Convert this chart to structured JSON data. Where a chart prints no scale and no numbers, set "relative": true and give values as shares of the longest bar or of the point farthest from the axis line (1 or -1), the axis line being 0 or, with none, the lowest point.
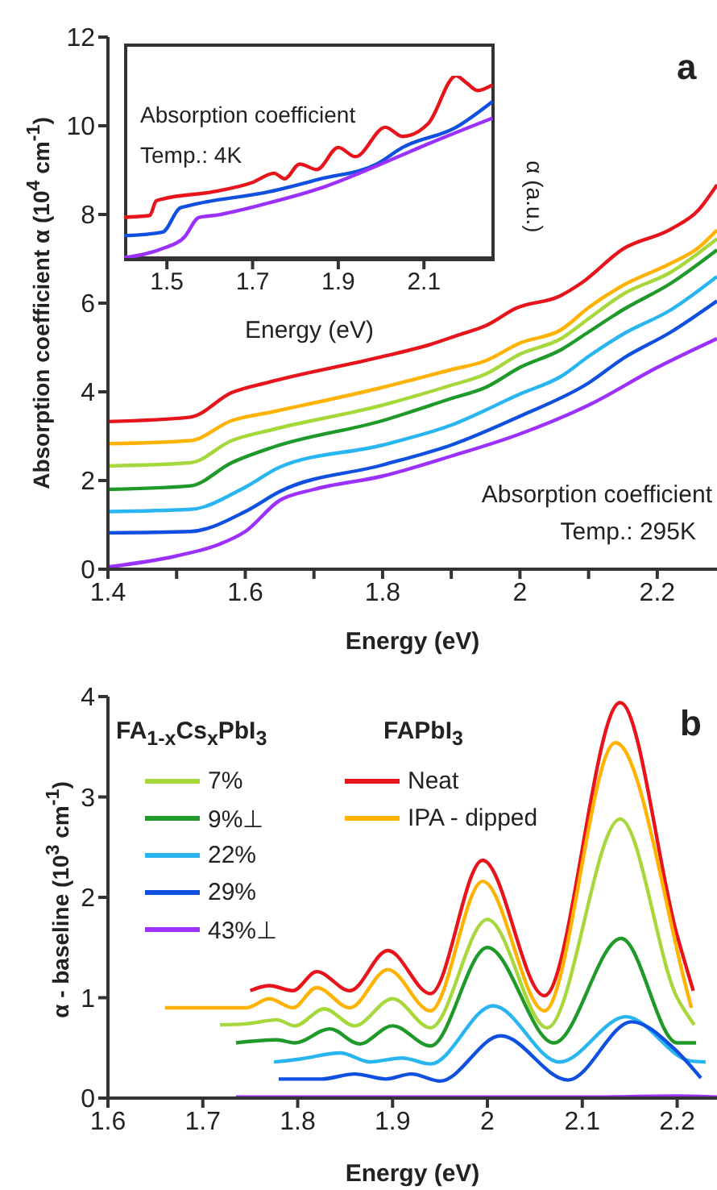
{
  "chart_data": [
    {
      "type": "line",
      "xlabel": "Energy (eV)",
      "ylabel": "Absorption coefficient α (10$^{4}$ cm$^{-1}$)",
      "xlim": [
        1.4,
        2.287
      ],
      "xticks": [
        1.4,
        {
          "value": 1.5,
          "label": null
        },
        1.6,
        {
          "value": 1.7,
          "label": null
        },
        1.8,
        {
          "value": 1.9,
          "label": null
        },
        2,
        {
          "value": 2.1,
          "label": null
        },
        2.2
      ],
      "ylim": [
        0,
        12
      ],
      "yticks": [
        0,
        2,
        4,
        6,
        8,
        10,
        12
      ],
      "annotations": [
        "Absorption coefficient",
        "Temp.: 295K",
        "a"
      ],
      "series": [
        {
          "color": "#e8141c",
          "x": [
            1.4,
            1.52,
            1.58,
            1.635,
            1.79,
            1.87,
            1.91,
            1.95,
            1.995,
            2.058,
            2.09,
            2.15,
            2.22,
            2.26,
            2.287
          ],
          "values": [
            3.33,
            3.43,
            3.98,
            4.22,
            4.76,
            5.07,
            5.28,
            5.49,
            5.89,
            6.16,
            6.46,
            7.22,
            7.67,
            8.1,
            8.67
          ]
        },
        {
          "color": "#ffb300",
          "x": [
            1.4,
            1.52,
            1.58,
            1.64,
            1.8,
            1.9,
            1.95,
            2.0,
            2.06,
            2.1,
            2.15,
            2.22,
            2.26,
            2.287
          ],
          "values": [
            2.83,
            2.9,
            3.35,
            3.55,
            4.1,
            4.5,
            4.7,
            5.1,
            5.4,
            5.9,
            6.4,
            6.9,
            7.25,
            7.65
          ]
        },
        {
          "color": "#a6d83c",
          "x": [
            1.4,
            1.52,
            1.58,
            1.64,
            1.8,
            1.9,
            1.95,
            2.0,
            2.06,
            2.1,
            2.15,
            2.22,
            2.287
          ],
          "values": [
            2.33,
            2.4,
            2.9,
            3.15,
            3.7,
            4.15,
            4.4,
            4.85,
            5.2,
            5.65,
            6.2,
            6.7,
            7.45
          ]
        },
        {
          "color": "#1f9a2a",
          "x": [
            1.4,
            1.52,
            1.58,
            1.64,
            1.8,
            1.9,
            1.95,
            2.0,
            2.06,
            2.1,
            2.15,
            2.22,
            2.287
          ],
          "values": [
            1.8,
            1.88,
            2.4,
            2.75,
            3.35,
            3.85,
            4.1,
            4.55,
            4.95,
            5.35,
            5.85,
            6.45,
            7.2
          ]
        },
        {
          "color": "#29b6f0",
          "x": [
            1.4,
            1.52,
            1.6,
            1.65,
            1.8,
            1.9,
            2.0,
            2.06,
            2.1,
            2.15,
            2.22,
            2.287
          ],
          "values": [
            1.3,
            1.35,
            1.85,
            2.3,
            2.8,
            3.25,
            3.95,
            4.35,
            4.8,
            5.3,
            5.85,
            6.6
          ]
        },
        {
          "color": "#1050e0",
          "x": [
            1.4,
            1.52,
            1.6,
            1.65,
            1.8,
            1.9,
            2.0,
            2.1,
            2.15,
            2.22,
            2.287
          ],
          "values": [
            0.82,
            0.85,
            1.3,
            1.75,
            2.35,
            2.8,
            3.45,
            4.2,
            4.75,
            5.35,
            6.05
          ]
        },
        {
          "color": "#9b30ff",
          "x": [
            1.4,
            1.5,
            1.56,
            1.6,
            1.65,
            1.7,
            1.8,
            1.9,
            2.0,
            2.1,
            2.2,
            2.287
          ],
          "values": [
            0.05,
            0.3,
            0.55,
            0.85,
            1.55,
            1.8,
            2.1,
            2.55,
            3.05,
            3.7,
            4.55,
            5.2
          ]
        }
      ]
    },
    {
      "type": "line",
      "relative": true,
      "xlabel": "Energy (eV)",
      "ylabel": "α (a.u.)",
      "xlim": [
        1.4,
        2.265
      ],
      "xticks": [
        1.5,
        1.7,
        1.9,
        2.1
      ],
      "tick_labels": "x",
      "annotations": [
        "Absorption coefficient",
        "Temp.: 4K"
      ],
      "series": [
        {
          "color": "#e8141c",
          "x": [
            1.4,
            1.46,
            1.475,
            1.49,
            1.61,
            1.7,
            1.75,
            1.775,
            1.81,
            1.85,
            1.9,
            1.94,
            2.01,
            2.05,
            2.11,
            2.175,
            2.2,
            2.225,
            2.26
          ],
          "values": [
            0.23,
            0.24,
            0.32,
            0.33,
            0.37,
            0.42,
            0.47,
            0.44,
            0.52,
            0.49,
            0.61,
            0.56,
            0.72,
            0.67,
            0.74,
            1,
            0.96,
            0.92,
            0.95
          ]
        },
        {
          "color": "#1050e0",
          "x": [
            1.4,
            1.49,
            1.53,
            1.545,
            1.74,
            1.86,
            1.99,
            2.05,
            2.175,
            2.26
          ],
          "values": [
            0.13,
            0.15,
            0.28,
            0.29,
            0.37,
            0.44,
            0.52,
            0.61,
            0.72,
            0.86
          ]
        },
        {
          "color": "#9b30ff",
          "x": [
            1.4,
            1.49,
            1.54,
            1.575,
            1.61,
            1.74,
            1.86,
            1.99,
            2.11,
            2.26
          ],
          "values": [
            0.01,
            0.06,
            0.12,
            0.23,
            0.24,
            0.31,
            0.39,
            0.51,
            0.63,
            0.77
          ]
        }
      ]
    },
    {
      "type": "line",
      "xlabel": "Energy (eV)",
      "ylabel": "α - baseline (10$^{3}$ cm$^{-1}$)",
      "xlim": [
        1.6,
        2.242
      ],
      "xticks": [
        1.6,
        1.7,
        1.8,
        1.9,
        2,
        2.1,
        2.2
      ],
      "ylim": [
        0,
        4
      ],
      "yticks": [
        0,
        1,
        2,
        3,
        4
      ],
      "legend": "top left",
      "legend_title": "FA$_{1-x}$Cs$_{x}$PbI$_{3}$",
      "annotations": [
        "FAPbI$_{3}$",
        "b"
      ],
      "series": [
        {
          "name": "7%",
          "color": "#a6d83c",
          "x": [
            1.718,
            1.746,
            1.778,
            1.797,
            1.828,
            1.86,
            1.9,
            1.94,
            2.0,
            2.063,
            2.14,
            2.2,
            2.218
          ],
          "values": [
            0.73,
            0.74,
            0.78,
            0.72,
            0.89,
            0.72,
            0.99,
            0.7,
            1.78,
            0.7,
            2.78,
            1.0,
            0.73
          ]
        },
        {
          "name": "9%⊥",
          "color": "#1f9a2a",
          "x": [
            1.735,
            1.778,
            1.797,
            1.834,
            1.865,
            1.9,
            1.94,
            2.0,
            2.07,
            2.141,
            2.2,
            2.22
          ],
          "values": [
            0.55,
            0.58,
            0.55,
            0.69,
            0.54,
            0.72,
            0.52,
            1.5,
            0.55,
            1.59,
            0.55,
            0.55
          ]
        },
        {
          "name": "22%",
          "color": "#29b6f0",
          "x": [
            1.775,
            1.803,
            1.845,
            1.876,
            1.91,
            1.94,
            2.006,
            2.076,
            2.146,
            2.214,
            2.23
          ],
          "values": [
            0.36,
            0.39,
            0.45,
            0.36,
            0.4,
            0.34,
            0.92,
            0.36,
            0.81,
            0.37,
            0.36
          ]
        },
        {
          "name": "29%",
          "color": "#1050e0",
          "x": [
            1.78,
            1.825,
            1.86,
            1.893,
            1.92,
            1.95,
            2.014,
            2.085,
            2.152,
            2.197,
            2.225
          ],
          "values": [
            0.19,
            0.19,
            0.24,
            0.19,
            0.24,
            0.17,
            0.62,
            0.18,
            0.76,
            0.49,
            0.2
          ]
        },
        {
          "name": "43%⊥",
          "color": "#9b30ff",
          "x": [
            1.735,
            1.9,
            2.1,
            2.2,
            2.242
          ],
          "values": [
            0.01,
            0.01,
            0.01,
            0.02,
            0.01
          ]
        },
        {
          "name": "Neat",
          "color": "#e8141c",
          "x": [
            1.75,
            1.77,
            1.795,
            1.82,
            1.855,
            1.895,
            1.94,
            1.995,
            2.06,
            2.14,
            2.2,
            2.217
          ],
          "values": [
            1.07,
            1.12,
            1.07,
            1.26,
            1.07,
            1.47,
            1.04,
            2.37,
            1.02,
            3.94,
            1.62,
            1.07
          ]
        },
        {
          "name": "IPA - dipped",
          "color": "#ffb300",
          "x": [
            1.66,
            1.746,
            1.77,
            1.795,
            1.82,
            1.855,
            1.895,
            1.94,
            1.995,
            2.06,
            2.135,
            2.21,
            2.215
          ],
          "values": [
            0.9,
            0.9,
            0.99,
            0.9,
            1.1,
            0.9,
            1.28,
            0.87,
            2.16,
            0.87,
            3.54,
            1.08,
            0.9
          ]
        }
      ]
    }
  ]
}
